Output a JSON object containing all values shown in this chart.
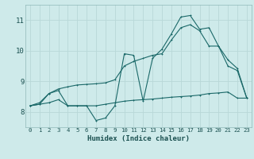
{
  "xlabel": "Humidex (Indice chaleur)",
  "bg_color": "#ceeaea",
  "grid_color": "#b8d8d8",
  "line_color": "#1a6868",
  "xlim": [
    -0.5,
    23.5
  ],
  "ylim": [
    7.5,
    11.5
  ],
  "yticks": [
    8,
    9,
    10,
    11
  ],
  "xticks": [
    0,
    1,
    2,
    3,
    4,
    5,
    6,
    7,
    8,
    9,
    10,
    11,
    12,
    13,
    14,
    15,
    16,
    17,
    18,
    19,
    20,
    21,
    22,
    23
  ],
  "series1_x": [
    0,
    1,
    2,
    3,
    4,
    5,
    6,
    7,
    8,
    9,
    10,
    11,
    12,
    13,
    14,
    15,
    16,
    17,
    18,
    19,
    20,
    21,
    22,
    23
  ],
  "series1_y": [
    8.2,
    8.25,
    8.3,
    8.4,
    8.2,
    8.2,
    8.2,
    8.2,
    8.25,
    8.3,
    8.35,
    8.38,
    8.4,
    8.42,
    8.45,
    8.48,
    8.5,
    8.52,
    8.55,
    8.6,
    8.62,
    8.65,
    8.45,
    8.45
  ],
  "series2_x": [
    0,
    1,
    2,
    3,
    4,
    5,
    6,
    7,
    8,
    9,
    10,
    11,
    12,
    13,
    14,
    15,
    16,
    17,
    18,
    19,
    20,
    21,
    22,
    23
  ],
  "series2_y": [
    8.2,
    8.25,
    8.6,
    8.7,
    8.2,
    8.2,
    8.2,
    7.72,
    7.8,
    8.2,
    9.9,
    9.85,
    8.35,
    9.75,
    10.05,
    10.55,
    11.1,
    11.15,
    10.7,
    10.75,
    10.15,
    9.5,
    9.35,
    8.45
  ],
  "series3_x": [
    0,
    1,
    2,
    3,
    4,
    5,
    6,
    7,
    8,
    9,
    10,
    11,
    12,
    13,
    14,
    15,
    16,
    17,
    18,
    19,
    20,
    21,
    22,
    23
  ],
  "series3_y": [
    8.2,
    8.3,
    8.6,
    8.75,
    8.82,
    8.88,
    8.9,
    8.92,
    8.95,
    9.05,
    9.5,
    9.65,
    9.75,
    9.85,
    9.9,
    10.35,
    10.75,
    10.85,
    10.65,
    10.15,
    10.15,
    9.7,
    9.42,
    8.45
  ]
}
